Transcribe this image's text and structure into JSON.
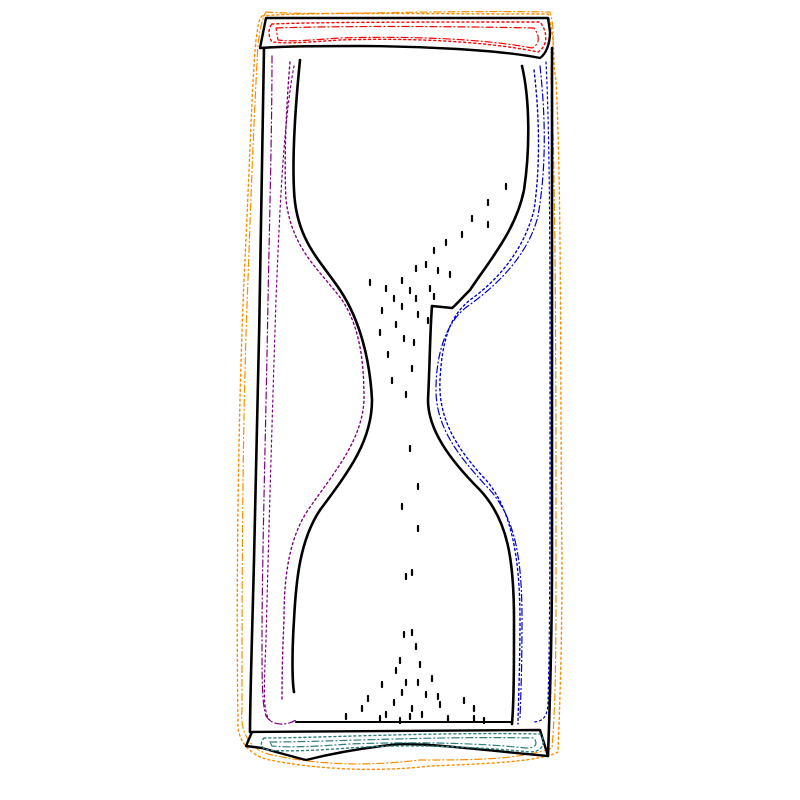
{
  "drawing": {
    "subject": "hourglass-sketch",
    "colors": {
      "ink": "#000000",
      "outer_outline": "#ff8c00",
      "top_cap_outline": "#ff0000",
      "left_glass_outline": "#800080",
      "right_glass_outline": "#0000cd",
      "bottom_cap_outline": "#2f7f7f",
      "background": "#ffffff"
    },
    "sand": {
      "falling_grains": 14,
      "top_grains": 30,
      "bottom_grains": 22
    }
  }
}
